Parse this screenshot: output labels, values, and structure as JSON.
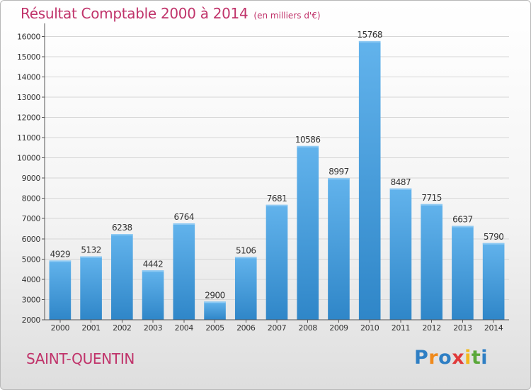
{
  "header": {
    "title": "Résultat Comptable 2000 à 2014",
    "subtitle": "(en milliers d'€)"
  },
  "footer": {
    "city": "SAINT-QUENTIN",
    "logo_text": "Proxiti",
    "logo_letters": [
      {
        "ch": "P",
        "color": "#2f7fc4"
      },
      {
        "ch": "r",
        "color": "#f08a1c"
      },
      {
        "ch": "o",
        "color": "#2f7fc4"
      },
      {
        "ch": "x",
        "color": "#e03a3a"
      },
      {
        "ch": "i",
        "color": "#f3b81c"
      },
      {
        "ch": "t",
        "color": "#5aa83a"
      },
      {
        "ch": "i",
        "color": "#2f7fc4"
      }
    ]
  },
  "colors": {
    "title": "#c0336a",
    "bar_light": "#62b3ec",
    "bar_dark": "#2f86c8",
    "grid": "#d6d6d6",
    "text": "#333333"
  },
  "chart_data": {
    "type": "bar",
    "categories": [
      "2000",
      "2001",
      "2002",
      "2003",
      "2004",
      "2005",
      "2006",
      "2007",
      "2008",
      "2009",
      "2010",
      "2011",
      "2012",
      "2013",
      "2014"
    ],
    "values": [
      4929,
      5132,
      6238,
      4442,
      6764,
      2900,
      5106,
      7681,
      10586,
      8997,
      15768,
      8487,
      7715,
      6637,
      5790
    ],
    "yticks": [
      2000,
      3000,
      4000,
      5000,
      6000,
      7000,
      8000,
      9000,
      10000,
      11000,
      12000,
      13000,
      14000,
      15000,
      16000
    ],
    "ylim": [
      2000,
      16500
    ],
    "grid": true,
    "title": "Résultat Comptable 2000 à 2014",
    "subtitle": "(en milliers d'€)"
  }
}
